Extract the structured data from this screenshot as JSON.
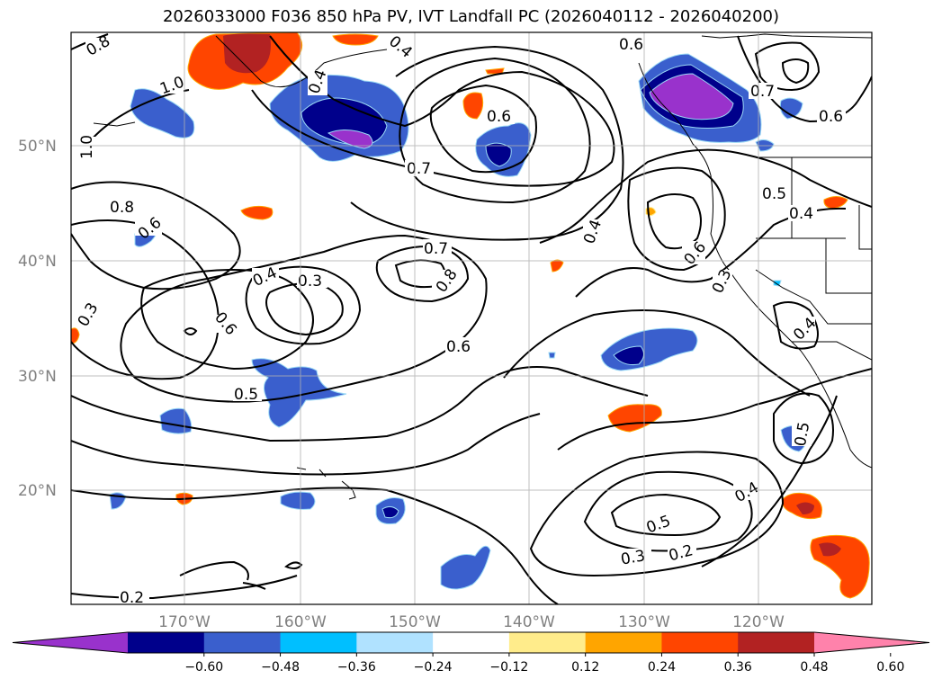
{
  "title": "2026033000 F036 850 hPa PV, IVT Landfall PC (2026040112 - 2026040200)",
  "map": {
    "lon_labels": [
      "170°W",
      "160°W",
      "150°W",
      "140°W",
      "130°W",
      "120°W"
    ],
    "lat_labels": [
      "50°N",
      "40°N",
      "30°N",
      "20°N"
    ],
    "contour_labels": [
      "0.8",
      "1.0",
      "1.0",
      "0.8",
      "0.6",
      "0.3",
      "0.4",
      "0.3",
      "0.6",
      "0.5",
      "0.7",
      "0.8",
      "0.6",
      "0.7",
      "0.6",
      "0.4",
      "0.6",
      "0.7",
      "0.6",
      "0.5",
      "0.4",
      "0.3",
      "0.4",
      "0.5",
      "0.4",
      "0.5",
      "0.3",
      "0.2",
      "0.2",
      "0.4",
      "0.4",
      "0.6"
    ]
  },
  "colorbar": {
    "ticks": [
      "−0.60",
      "−0.48",
      "−0.36",
      "−0.24",
      "−0.12",
      "0.12",
      "0.24",
      "0.36",
      "0.48",
      "0.60"
    ],
    "colors": [
      "#9932cc",
      "#00008b",
      "#3a5fcd",
      "#00bfff",
      "#b0e2ff",
      "#ffffff",
      "#ffec8b",
      "#ffa500",
      "#ff4500",
      "#b22222",
      "#ff82ab"
    ]
  }
}
